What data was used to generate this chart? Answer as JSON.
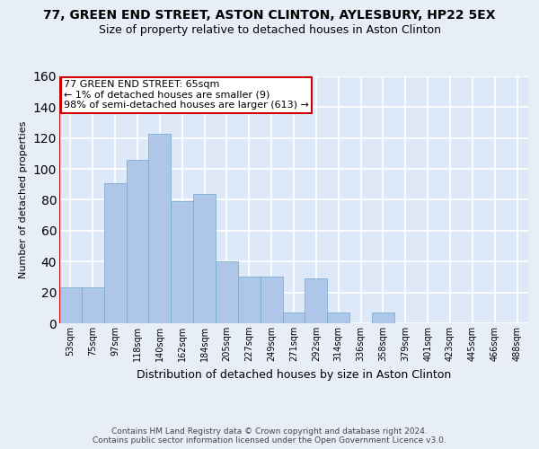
{
  "title": "77, GREEN END STREET, ASTON CLINTON, AYLESBURY, HP22 5EX",
  "subtitle": "Size of property relative to detached houses in Aston Clinton",
  "xlabel": "Distribution of detached houses by size in Aston Clinton",
  "ylabel": "Number of detached properties",
  "categories": [
    "53sqm",
    "75sqm",
    "97sqm",
    "118sqm",
    "140sqm",
    "162sqm",
    "184sqm",
    "205sqm",
    "227sqm",
    "249sqm",
    "271sqm",
    "292sqm",
    "314sqm",
    "336sqm",
    "358sqm",
    "379sqm",
    "401sqm",
    "423sqm",
    "445sqm",
    "466sqm",
    "488sqm"
  ],
  "values": [
    23,
    23,
    91,
    106,
    123,
    79,
    84,
    40,
    30,
    30,
    7,
    29,
    7,
    0,
    7,
    0,
    0,
    0,
    0,
    0,
    0
  ],
  "bar_color": "#aec6e8",
  "bar_edge_color": "#7aafd4",
  "highlight_color": "#cc0000",
  "annotation_line1": "77 GREEN END STREET: 65sqm",
  "annotation_line2": "← 1% of detached houses are smaller (9)",
  "annotation_line3": "98% of semi-detached houses are larger (613) →",
  "annotation_box_color": "#ffffff",
  "annotation_border_color": "#cc0000",
  "ylim": [
    0,
    160
  ],
  "yticks": [
    0,
    20,
    40,
    60,
    80,
    100,
    120,
    140,
    160
  ],
  "background_color": "#dde8f8",
  "grid_color": "#ffffff",
  "footer": "Contains HM Land Registry data © Crown copyright and database right 2024.\nContains public sector information licensed under the Open Government Licence v3.0.",
  "title_fontsize": 10,
  "subtitle_fontsize": 9,
  "ylabel_fontsize": 8,
  "xlabel_fontsize": 9,
  "annotation_fontsize": 8,
  "tick_fontsize": 7
}
